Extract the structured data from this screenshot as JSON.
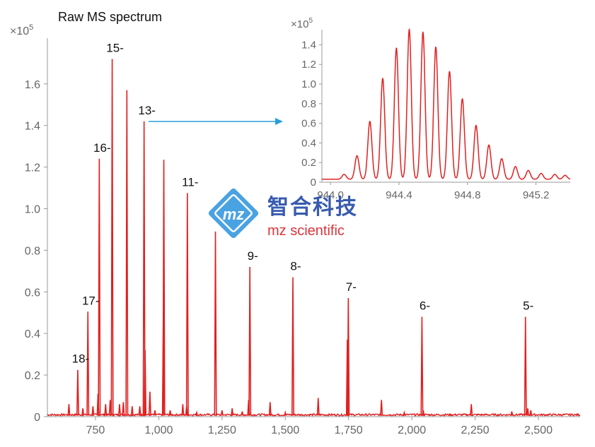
{
  "chart_data": [
    {
      "type": "line",
      "title": "Raw MS spectrum",
      "multiplier": "×10",
      "multiplier_exp": "5",
      "xlim": [
        560,
        2665
      ],
      "ylim": [
        0,
        1.82
      ],
      "xticks": [
        750,
        1000,
        1250,
        1500,
        1750,
        2000,
        2250,
        2500
      ],
      "xtick_labels": [
        "750",
        "1,000",
        "1,250",
        "1,500",
        "1,750",
        "2,000",
        "2,250",
        "2,500"
      ],
      "yticks": [
        0,
        0.2,
        0.4,
        0.6,
        0.8,
        1.0,
        1.2,
        1.4,
        1.6
      ],
      "ytick_labels": [
        "0",
        "0.2",
        "0.4",
        "0.6",
        "0.8",
        "1.0",
        "1.2",
        "1.4",
        "1.6"
      ],
      "color": "#e02020",
      "charge_state_peaks": [
        {
          "label": "18-",
          "x": 680,
          "y": 0.225
        },
        {
          "label": "17-",
          "x": 720,
          "y": 0.505
        },
        {
          "label": "16-",
          "x": 765,
          "y": 1.24
        },
        {
          "label": "15-",
          "x": 816,
          "y": 1.72
        },
        {
          "label": "",
          "x": 874,
          "y": 1.57
        },
        {
          "label": "13-",
          "x": 942,
          "y": 1.42
        },
        {
          "label": "",
          "x": 1020,
          "y": 1.235
        },
        {
          "label": "11-",
          "x": 1113,
          "y": 1.075
        },
        {
          "label": "",
          "x": 1224,
          "y": 0.89
        },
        {
          "label": "9-",
          "x": 1360,
          "y": 0.72
        },
        {
          "label": "8-",
          "x": 1530,
          "y": 0.67
        },
        {
          "label": "7-",
          "x": 1749,
          "y": 0.57
        },
        {
          "label": "6-",
          "x": 2040,
          "y": 0.48
        },
        {
          "label": "5-",
          "x": 2449,
          "y": 0.48
        }
      ],
      "minor_peaks": [
        {
          "x": 645,
          "y": 0.06
        },
        {
          "x": 700,
          "y": 0.04
        },
        {
          "x": 740,
          "y": 0.05
        },
        {
          "x": 760,
          "y": 0.11
        },
        {
          "x": 790,
          "y": 0.06
        },
        {
          "x": 808,
          "y": 0.08
        },
        {
          "x": 845,
          "y": 0.06
        },
        {
          "x": 860,
          "y": 0.07
        },
        {
          "x": 895,
          "y": 0.05
        },
        {
          "x": 925,
          "y": 0.05
        },
        {
          "x": 946,
          "y": 0.32
        },
        {
          "x": 965,
          "y": 0.12
        },
        {
          "x": 985,
          "y": 0.03
        },
        {
          "x": 1018,
          "y": 0.47
        },
        {
          "x": 1045,
          "y": 0.03
        },
        {
          "x": 1095,
          "y": 0.06
        },
        {
          "x": 1110,
          "y": 0.05
        },
        {
          "x": 1150,
          "y": 0.02
        },
        {
          "x": 1250,
          "y": 0.03
        },
        {
          "x": 1290,
          "y": 0.04
        },
        {
          "x": 1330,
          "y": 0.025
        },
        {
          "x": 1355,
          "y": 0.08
        },
        {
          "x": 1440,
          "y": 0.07
        },
        {
          "x": 1500,
          "y": 0.02
        },
        {
          "x": 1630,
          "y": 0.09
        },
        {
          "x": 1745,
          "y": 0.37
        },
        {
          "x": 1880,
          "y": 0.08
        },
        {
          "x": 1970,
          "y": 0.02
        },
        {
          "x": 2045,
          "y": 0.03
        },
        {
          "x": 2235,
          "y": 0.06
        },
        {
          "x": 2395,
          "y": 0.025
        },
        {
          "x": 2458,
          "y": 0.04
        },
        {
          "x": 2470,
          "y": 0.03
        }
      ]
    },
    {
      "type": "line",
      "title": "",
      "multiplier": "×10",
      "multiplier_exp": "5",
      "xlim": [
        943.95,
        945.4
      ],
      "ylim": [
        0,
        1.54
      ],
      "xticks": [
        944.0,
        944.4,
        944.8,
        945.2
      ],
      "xtick_labels": [
        "944.0",
        "944.4",
        "944.8",
        "945.2"
      ],
      "yticks": [
        0,
        0.2,
        0.4,
        0.6,
        0.8,
        1.0,
        1.2,
        1.4
      ],
      "ytick_labels": [
        "0",
        "0.2",
        "0.4",
        "0.6",
        "0.8",
        "1.0",
        "1.2",
        "1.4"
      ],
      "color": "#e02020",
      "isotope_peaks": [
        {
          "x": 944.08,
          "y": 0.05
        },
        {
          "x": 944.155,
          "y": 0.24
        },
        {
          "x": 944.23,
          "y": 0.59
        },
        {
          "x": 944.305,
          "y": 1.03
        },
        {
          "x": 944.385,
          "y": 1.34
        },
        {
          "x": 944.46,
          "y": 1.53
        },
        {
          "x": 944.54,
          "y": 1.5
        },
        {
          "x": 944.615,
          "y": 1.35
        },
        {
          "x": 944.695,
          "y": 1.1
        },
        {
          "x": 944.77,
          "y": 0.82
        },
        {
          "x": 944.85,
          "y": 0.55
        },
        {
          "x": 944.925,
          "y": 0.35
        },
        {
          "x": 945.0,
          "y": 0.21
        },
        {
          "x": 945.08,
          "y": 0.13
        },
        {
          "x": 945.155,
          "y": 0.09
        },
        {
          "x": 945.23,
          "y": 0.06
        },
        {
          "x": 945.31,
          "y": 0.05
        },
        {
          "x": 945.37,
          "y": 0.04
        }
      ],
      "baseline": 0.03
    }
  ],
  "watermark": {
    "cn_text": "智合科技",
    "en_text": "mz scientific",
    "badge_text": "mz"
  },
  "colors": {
    "spectrum": "#e02020",
    "arrow": "#2a9fd8",
    "axis": "#999999",
    "logo_blue": "#2a4fa8",
    "logo_red": "#d8262e"
  }
}
